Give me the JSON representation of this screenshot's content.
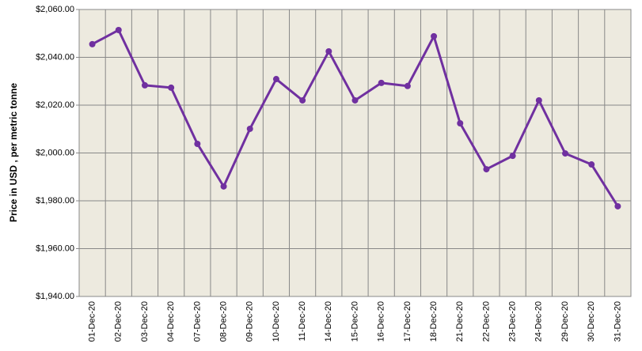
{
  "chart_data": {
    "type": "line",
    "y_label": "Price in USD , per metric tonne",
    "categories": [
      "01-Dec-20",
      "02-Dec-20",
      "03-Dec-20",
      "04-Dec-20",
      "07-Dec-20",
      "08-Dec-20",
      "09-Dec-20",
      "10-Dec-20",
      "11-Dec-20",
      "14-Dec-20",
      "15-Dec-20",
      "16-Dec-20",
      "17-Dec-20",
      "18-Dec-20",
      "21-Dec-20",
      "22-Dec-20",
      "23-Dec-20",
      "24-Dec-20",
      "29-Dec-20",
      "30-Dec-20",
      "31-Dec-20"
    ],
    "values": [
      2045.5,
      2051.4,
      2028.3,
      2027.3,
      2003.8,
      1986,
      2010.1,
      2030.9,
      2022,
      2042.5,
      2022,
      2029.3,
      2028,
      2048.8,
      2012.4,
      1993.2,
      1998.8,
      2022,
      1999.8,
      1995.2,
      1977.7
    ],
    "color": "#7030a0",
    "ylim": [
      1940,
      2060
    ],
    "yticks": [
      {
        "value": 1940,
        "label": "$1,940.00"
      },
      {
        "value": 1960,
        "label": "$1,960.00"
      },
      {
        "value": 1980,
        "label": "$1,980.00"
      },
      {
        "value": 2000,
        "label": "$2,000.00"
      },
      {
        "value": 2020,
        "label": "$2,020.00"
      },
      {
        "value": 2040,
        "label": "$2,040.00"
      },
      {
        "value": 2060,
        "label": "$2,060.00"
      }
    ],
    "grid": true
  }
}
